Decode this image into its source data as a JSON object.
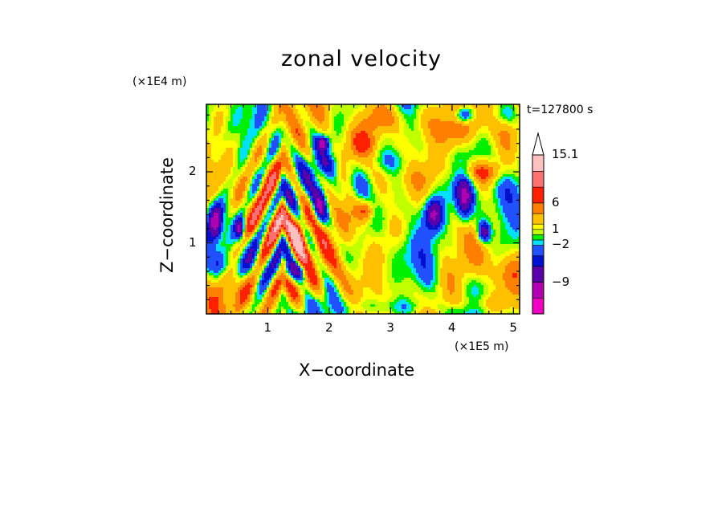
{
  "chart_data": {
    "type": "heatmap",
    "title": "zonal velocity",
    "xlabel": "X−coordinate",
    "ylabel": "Z−coordinate",
    "x_unit": "(×1E5 m)",
    "y_unit": "(×1E4 m)",
    "time_label": "t=127800 s",
    "xlim": [
      0,
      5.1
    ],
    "ylim": [
      0,
      2.95
    ],
    "x_ticks": [
      "1",
      "2",
      "3",
      "4",
      "5"
    ],
    "x_tick_values": [
      1,
      2,
      3,
      4,
      5
    ],
    "y_ticks": [
      "1",
      "2"
    ],
    "y_tick_values": [
      1,
      2
    ],
    "colorbar": {
      "min": -15,
      "max": 15.1,
      "levels": [
        -15,
        -12,
        -9,
        -6,
        -4,
        -2,
        -1,
        0,
        1,
        2,
        4,
        6,
        9,
        12,
        15.1
      ],
      "tick_labels": [
        "15.1",
        "6",
        "1",
        "−2",
        "−9"
      ],
      "tick_values": [
        15.1,
        6,
        1,
        -2,
        -9
      ],
      "colors": [
        "#f000c0",
        "#b000b0",
        "#5a00a8",
        "#0010d0",
        "#2050ff",
        "#00e0ff",
        "#00f000",
        "#c0ff00",
        "#ffff00",
        "#ffc000",
        "#ff8000",
        "#ff2000",
        "#ff7070",
        "#ffc0c0"
      ],
      "extend": "max"
    },
    "features": [
      {
        "x": 0.15,
        "z": 1.3,
        "sx": 0.08,
        "sz": 0.18,
        "v": -10
      },
      {
        "x": 0.55,
        "z": 1.2,
        "sx": 0.05,
        "sz": 0.1,
        "v": -9
      },
      {
        "x": 1.1,
        "z": 1.3,
        "sx": 0.15,
        "sz": 0.22,
        "v": 7
      },
      {
        "x": 1.5,
        "z": 1.15,
        "sx": 0.1,
        "sz": 0.25,
        "v": 8
      },
      {
        "x": 1.45,
        "z": 0.6,
        "sx": 0.18,
        "sz": 0.1,
        "v": -8
      },
      {
        "x": 1.85,
        "z": 1.5,
        "sx": 0.08,
        "sz": 0.18,
        "v": -8
      },
      {
        "x": 1.9,
        "z": 2.4,
        "sx": 0.07,
        "sz": 0.07,
        "v": -8
      },
      {
        "x": 1.95,
        "z": 0.55,
        "sx": 0.35,
        "sz": 0.2,
        "v": 2.5
      },
      {
        "x": 2.9,
        "z": 1.0,
        "sx": 0.4,
        "sz": 0.35,
        "v": 1.2
      },
      {
        "x": 3.2,
        "z": 1.5,
        "sx": 0.22,
        "sz": 0.2,
        "v": -3
      },
      {
        "x": 3.05,
        "z": 2.15,
        "sx": 0.25,
        "sz": 0.12,
        "v": -3
      },
      {
        "x": 2.6,
        "z": 2.4,
        "sx": 0.22,
        "sz": 0.15,
        "v": 4
      },
      {
        "x": 3.0,
        "z": 2.75,
        "sx": 0.3,
        "sz": 0.15,
        "v": 5
      },
      {
        "x": 3.7,
        "z": 1.4,
        "sx": 0.1,
        "sz": 0.15,
        "v": -8
      },
      {
        "x": 4.2,
        "z": 1.6,
        "sx": 0.1,
        "sz": 0.22,
        "v": -10
      },
      {
        "x": 4.52,
        "z": 1.15,
        "sx": 0.07,
        "sz": 0.1,
        "v": -10
      },
      {
        "x": 4.45,
        "z": 2.0,
        "sx": 0.3,
        "sz": 0.12,
        "v": 6
      },
      {
        "x": 4.1,
        "z": 2.6,
        "sx": 0.4,
        "sz": 0.18,
        "v": 3
      },
      {
        "x": 4.2,
        "z": 2.8,
        "sx": 0.1,
        "sz": 0.08,
        "v": -8
      },
      {
        "x": 4.9,
        "z": 2.8,
        "sx": 0.15,
        "sz": 0.1,
        "v": -3
      },
      {
        "x": 4.9,
        "z": 1.5,
        "sx": 0.2,
        "sz": 0.4,
        "v": -3
      },
      {
        "x": 4.9,
        "z": 0.6,
        "sx": 0.3,
        "sz": 0.2,
        "v": 3
      },
      {
        "x": 4.5,
        "z": 0.15,
        "sx": 0.4,
        "sz": 0.1,
        "v": 3
      },
      {
        "x": 3.6,
        "z": 0.8,
        "sx": 0.15,
        "sz": 0.3,
        "v": -3
      },
      {
        "x": 3.0,
        "z": 0.1,
        "sx": 0.7,
        "sz": 0.08,
        "v": -2.5
      },
      {
        "x": 0.5,
        "z": 0.3,
        "sx": 0.5,
        "sz": 0.2,
        "v": 3
      },
      {
        "x": 0.3,
        "z": 0.7,
        "sx": 0.3,
        "sz": 0.12,
        "v": -3
      },
      {
        "x": 2.3,
        "z": 1.3,
        "sx": 0.15,
        "sz": 0.4,
        "v": 2.5
      },
      {
        "x": 2.5,
        "z": 1.8,
        "sx": 0.15,
        "sz": 0.15,
        "v": -4
      },
      {
        "x": 2.6,
        "z": 1.45,
        "sx": 0.1,
        "sz": 0.1,
        "v": 6
      },
      {
        "x": 2.0,
        "z": 2.1,
        "sx": 0.15,
        "sz": 0.12,
        "v": -3
      }
    ],
    "wave_packet": {
      "x0": 1.25,
      "z0": 1.2,
      "amplitude": 8,
      "wavenumber": 14
    }
  }
}
